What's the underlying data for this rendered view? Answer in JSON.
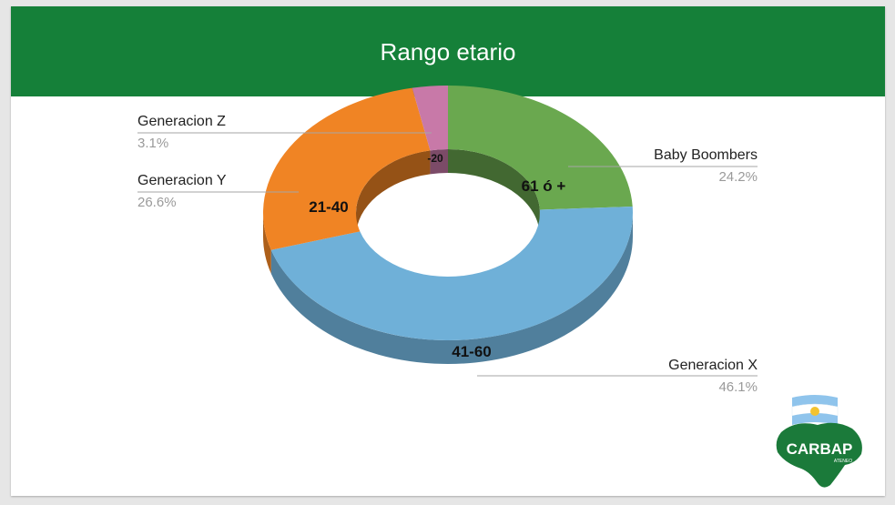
{
  "header": {
    "title": "Rango etario"
  },
  "chart_data": {
    "type": "pie",
    "title": "Rango etario",
    "donut": true,
    "categories": [
      "Baby Boombers",
      "Generacion X",
      "Generacion Y",
      "Generacion Z"
    ],
    "slices": [
      {
        "name": "Baby Boombers",
        "range_label": "61 ó +",
        "value": 24.2,
        "percent_label": "24.2%",
        "color": "#6aa84f"
      },
      {
        "name": "Generacion X",
        "range_label": "41-60",
        "value": 46.1,
        "percent_label": "46.1%",
        "color": "#6fb0d8"
      },
      {
        "name": "Generacion Y",
        "range_label": "21-40",
        "value": 26.6,
        "percent_label": "26.6%",
        "color": "#f08424"
      },
      {
        "name": "Generacion Z",
        "range_label": "-20",
        "value": 3.1,
        "percent_label": "3.1%",
        "color": "#c879a8"
      }
    ]
  },
  "logo": {
    "text": "CARBAP",
    "subtext": "ATENEO",
    "color": "#1b7a3a"
  }
}
